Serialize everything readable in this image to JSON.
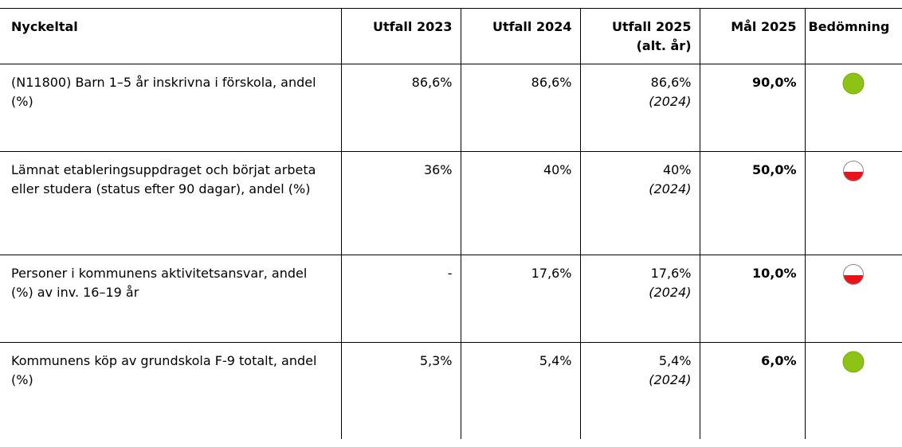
{
  "table": {
    "header": [
      "Nyckeltal",
      "Utfall 2023",
      "Utfall 2024",
      "Utfall 2025",
      "Mål 2025",
      "Bedömning"
    ],
    "header_sub": "(alt. år)",
    "rows": [
      {
        "name": "(N11800) Barn 1–5 år inskrivna i förskola, andel (%)",
        "u2023": "86,6%",
        "u2024": "86,6%",
        "u2025": "86,6%",
        "alt": "(2024)",
        "goal": "90,0%"
      },
      {
        "name": "Lämnat etableringsuppdraget och börjat arbeta eller studera (status efter 90 dagar), andel (%)",
        "u2023": "36%",
        "u2024": "40%",
        "u2025": "40%",
        "alt": "(2024)",
        "goal": "50,0%"
      },
      {
        "name": "Personer i kommunens aktivitetsansvar, andel (%) av inv. 16–19 år",
        "u2023": "-",
        "u2024": "17,6%",
        "u2025": "17,6%",
        "alt": "(2024)",
        "goal": "10,0%"
      },
      {
        "name": "Kommunens köp av grundskola F-9 totalt, andel (%)",
        "u2023": "5,3%",
        "u2024": "5,4%",
        "u2025": "5,4%",
        "alt": "(2024)",
        "goal": "6,0%"
      }
    ]
  }
}
